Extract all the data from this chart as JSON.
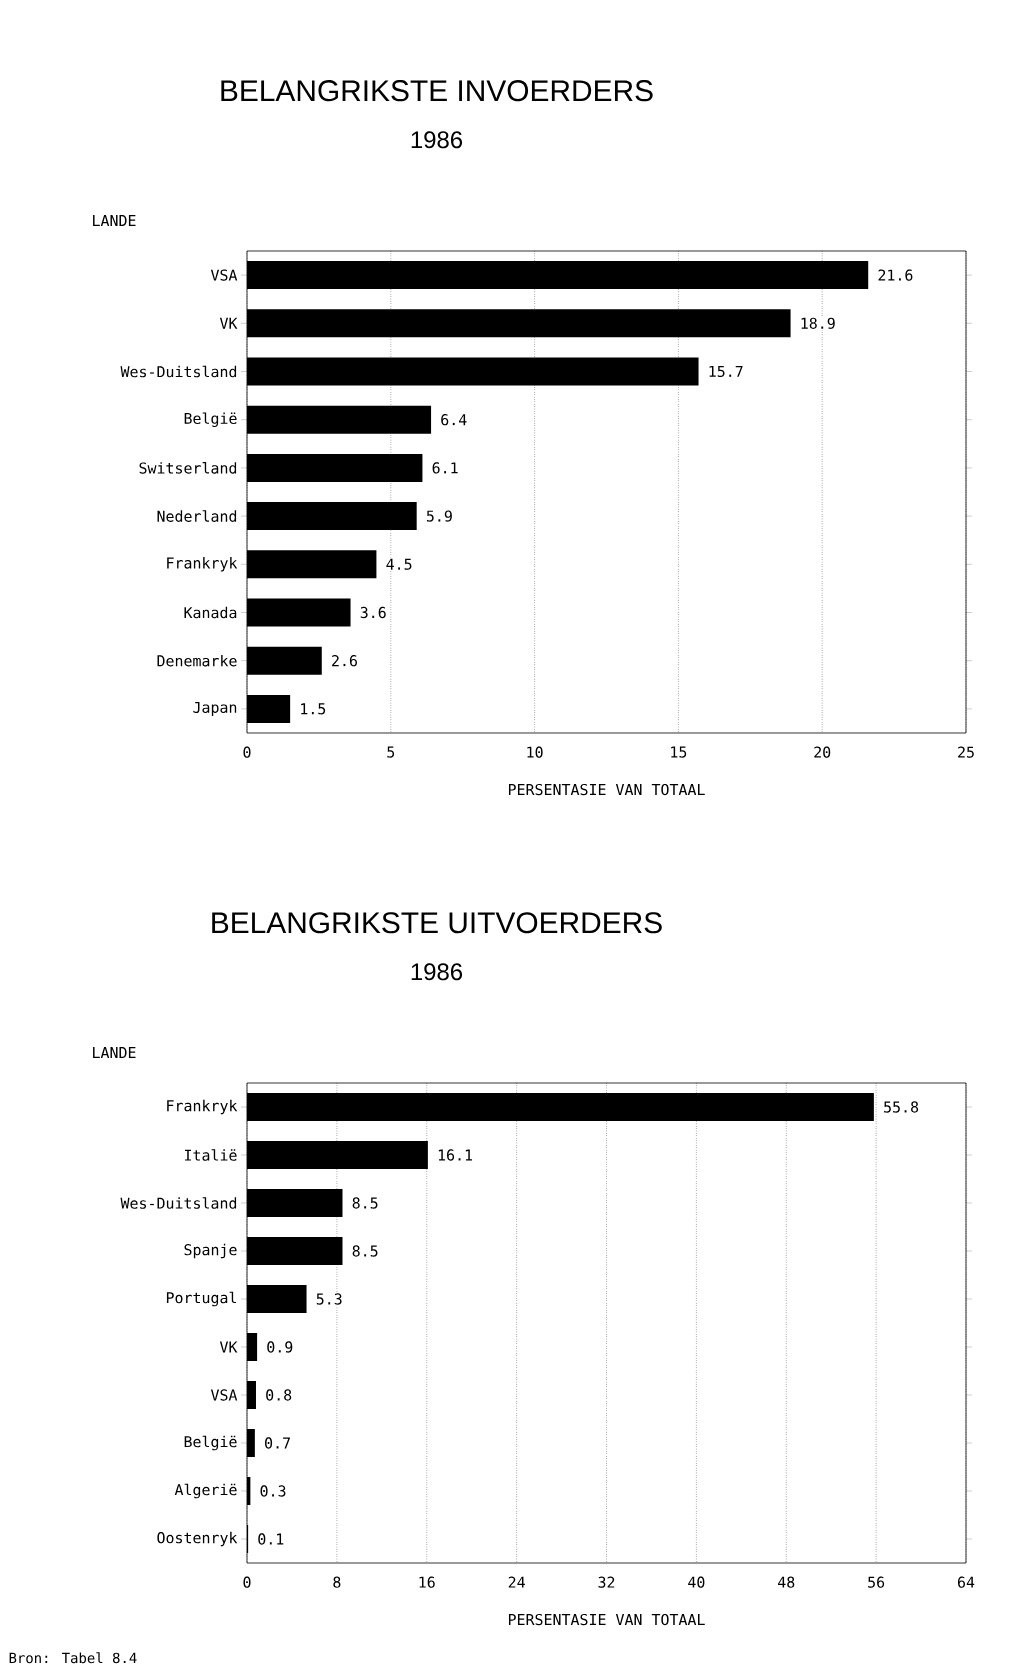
{
  "chart_data": [
    {
      "type": "bar",
      "orientation": "horizontal",
      "title": "BELANGRIKSTE INVOERDERS",
      "subtitle": "1986",
      "ylabel": "LANDE",
      "xlabel": "PERSENTASIE VAN TOTAAL",
      "categories": [
        "VSA",
        "VK",
        "Wes-Duitsland",
        "België",
        "Switserland",
        "Nederland",
        "Frankryk",
        "Kanada",
        "Denemarke",
        "Japan"
      ],
      "values": [
        21.6,
        18.9,
        15.7,
        6.4,
        6.1,
        5.9,
        4.5,
        3.6,
        2.6,
        1.5
      ],
      "color": "#000000",
      "xlim": [
        0,
        25
      ],
      "xticks": [
        0,
        5,
        10,
        15,
        20,
        25
      ],
      "grid": "x",
      "data_labels": true
    },
    {
      "type": "bar",
      "orientation": "horizontal",
      "title": "BELANGRIKSTE UITVOERDERS",
      "subtitle": "1986",
      "ylabel": "LANDE",
      "xlabel": "PERSENTASIE VAN TOTAAL",
      "categories": [
        "Frankryk",
        "Italië",
        "Wes-Duitsland",
        "Spanje",
        "Portugal",
        "VK",
        "VSA",
        "België",
        "Algerië",
        "Oostenryk"
      ],
      "values": [
        55.8,
        16.1,
        8.5,
        8.5,
        5.3,
        0.9,
        0.8,
        0.7,
        0.3,
        0.1
      ],
      "color": "#000000",
      "xlim": [
        0,
        64
      ],
      "xticks": [
        0,
        8,
        16,
        24,
        32,
        40,
        48,
        56,
        64
      ],
      "grid": "x",
      "data_labels": true,
      "annotations": [
        "Bron: Tabel 8.4"
      ]
    }
  ]
}
